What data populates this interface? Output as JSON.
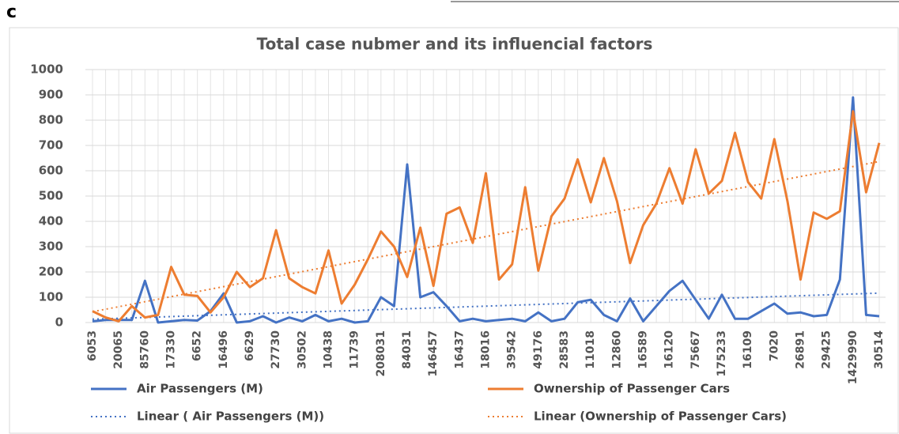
{
  "chart_data": {
    "type": "line",
    "panel_label": "c",
    "title": "Total case nubmer and its influencial factors",
    "categories": [
      "6053",
      null,
      "20065",
      null,
      "85760",
      null,
      "17330",
      null,
      "6652",
      null,
      "16496",
      null,
      "6629",
      null,
      "27730",
      null,
      "30502",
      null,
      "10438",
      null,
      "11739",
      null,
      "208031",
      null,
      "84031",
      null,
      "146457",
      null,
      "16437",
      null,
      "18016",
      null,
      "39542",
      null,
      "49176",
      null,
      "28583",
      null,
      "11018",
      null,
      "12860",
      null,
      "16589",
      null,
      "16120",
      null,
      "75667",
      null,
      "175233",
      null,
      "16109",
      null,
      "7020",
      null,
      "26891",
      null,
      "29425",
      null,
      "1429990",
      null,
      "30514"
    ],
    "series": [
      {
        "name": "Air Passengers (M)",
        "color": "#4472c4",
        "values": [
          5,
          10,
          10,
          10,
          165,
          0,
          5,
          10,
          8,
          45,
          115,
          0,
          5,
          25,
          0,
          20,
          5,
          30,
          5,
          15,
          0,
          5,
          100,
          65,
          625,
          100,
          120,
          65,
          5,
          15,
          5,
          10,
          15,
          5,
          40,
          5,
          15,
          80,
          90,
          30,
          5,
          95,
          5,
          65,
          125,
          165,
          90,
          15,
          110,
          15,
          15,
          45,
          75,
          35,
          40,
          25,
          30,
          170,
          890,
          30,
          25
        ]
      },
      {
        "name": "Ownership of Passenger Cars",
        "color": "#ed7d31",
        "values": [
          45,
          20,
          5,
          65,
          20,
          30,
          220,
          110,
          105,
          40,
          100,
          200,
          140,
          175,
          365,
          175,
          140,
          115,
          285,
          75,
          150,
          250,
          360,
          300,
          180,
          375,
          145,
          430,
          455,
          315,
          590,
          170,
          230,
          535,
          205,
          420,
          490,
          645,
          475,
          650,
          480,
          235,
          385,
          470,
          610,
          470,
          685,
          510,
          560,
          750,
          555,
          490,
          725,
          480,
          170,
          435,
          410,
          440,
          835,
          515,
          710
        ]
      }
    ],
    "trendlines": [
      {
        "name": "Linear ( Air Passengers (M))",
        "series": 0,
        "color": "#4472c4"
      },
      {
        "name": "Linear (Ownership of Passenger Cars)",
        "series": 1,
        "color": "#ed7d31"
      }
    ],
    "ylim": [
      0,
      1000
    ],
    "yticks": [
      0,
      100,
      200,
      300,
      400,
      500,
      600,
      700,
      800,
      900,
      1000
    ],
    "grid": true
  }
}
